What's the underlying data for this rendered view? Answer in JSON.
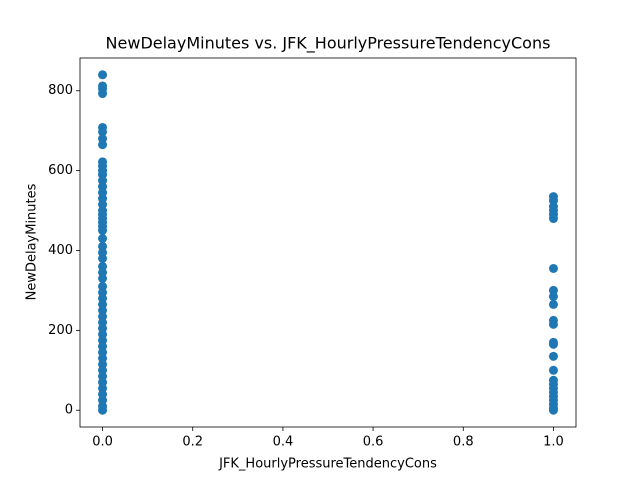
{
  "chart_data": {
    "type": "scatter",
    "title": "NewDelayMinutes vs. JFK_HourlyPressureTendencyCons",
    "x_label": "JFK_HourlyPressureTendencyCons",
    "y_label": "NewDelayMinutes",
    "color": "#1f77b4",
    "x": [
      0,
      0,
      0,
      0,
      0,
      0,
      0,
      0,
      0,
      0,
      0,
      0,
      0,
      0,
      0,
      0,
      0,
      0,
      0,
      0,
      0,
      0,
      0,
      0,
      0,
      0,
      0,
      0,
      0,
      0,
      0,
      0,
      0,
      0,
      0,
      0,
      0,
      0,
      0,
      0,
      0,
      0,
      0,
      0,
      0,
      0,
      0,
      0,
      0,
      0,
      0,
      0,
      1,
      1,
      1,
      1,
      1,
      1,
      1,
      1,
      1,
      1,
      1,
      1,
      1,
      1,
      1,
      1,
      1,
      1,
      1,
      1,
      1,
      1,
      1,
      1,
      1
    ],
    "y": [
      840,
      812,
      805,
      793,
      708,
      697,
      680,
      665,
      622,
      612,
      600,
      590,
      575,
      560,
      545,
      530,
      515,
      500,
      490,
      480,
      470,
      460,
      450,
      430,
      410,
      395,
      380,
      360,
      345,
      330,
      310,
      295,
      280,
      265,
      250,
      235,
      220,
      205,
      190,
      175,
      160,
      145,
      130,
      115,
      100,
      85,
      70,
      55,
      40,
      25,
      10,
      0,
      535,
      525,
      510,
      500,
      490,
      480,
      355,
      300,
      285,
      265,
      225,
      215,
      170,
      165,
      135,
      100,
      75,
      65,
      55,
      45,
      35,
      25,
      15,
      5,
      0
    ],
    "xlim": [
      -0.05,
      1.05
    ],
    "ylim": [
      -42,
      882
    ],
    "xticks": [
      {
        "value": 0,
        "label": "0.0"
      },
      {
        "value": 0.2,
        "label": "0.2"
      },
      {
        "value": 0.4,
        "label": "0.4"
      },
      {
        "value": 0.6,
        "label": "0.6"
      },
      {
        "value": 0.8,
        "label": "0.8"
      },
      {
        "value": 1,
        "label": "1.0"
      }
    ],
    "yticks": [
      0,
      200,
      400,
      600,
      800
    ]
  }
}
